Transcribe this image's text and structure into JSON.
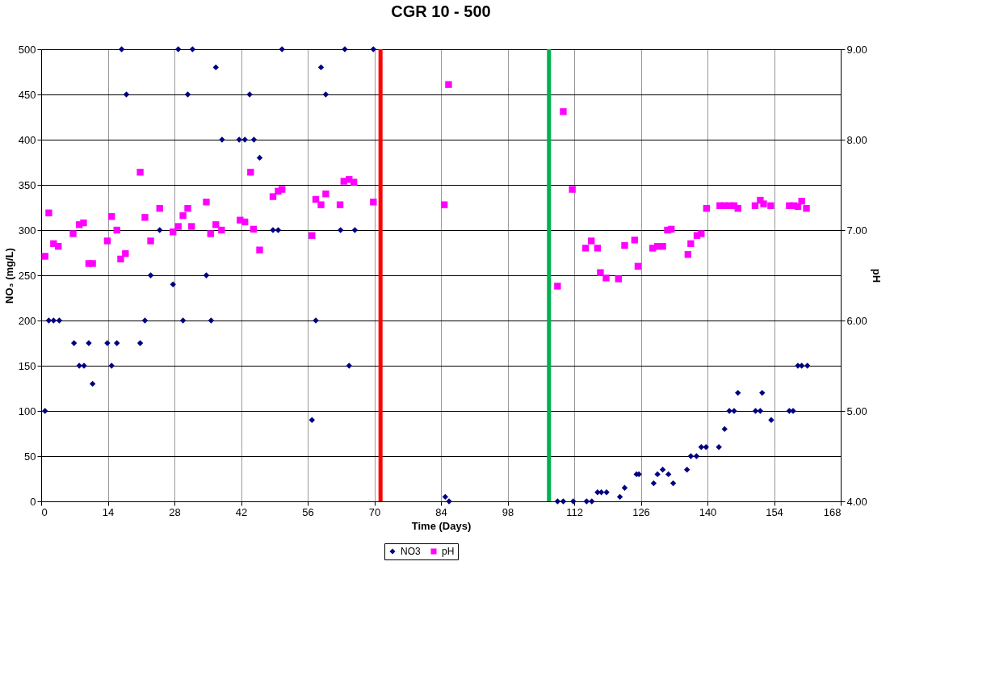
{
  "chart_data": {
    "type": "scatter",
    "title": "CGR 10 - 500",
    "xlabel": "Time (Days)",
    "ylabel": "NO₃ (mg/L)",
    "y2label": "pH",
    "xlim": [
      0,
      168
    ],
    "xticks": [
      0,
      14,
      28,
      42,
      56,
      70,
      84,
      98,
      112,
      126,
      140,
      154,
      168
    ],
    "ylim": [
      0,
      500
    ],
    "yticks": [
      0,
      50,
      100,
      150,
      200,
      250,
      300,
      350,
      400,
      450,
      500
    ],
    "y2lim": [
      4,
      9
    ],
    "y2ticks": [
      {
        "value": 4,
        "label": "4.00"
      },
      {
        "value": 5,
        "label": "5.00"
      },
      {
        "value": 6,
        "label": "6.00"
      },
      {
        "value": 7,
        "label": "7.00"
      },
      {
        "value": 8,
        "label": "8.00"
      },
      {
        "value": 9,
        "label": "9.00"
      }
    ],
    "grid": true,
    "legend": "bottom",
    "ref_lines": [
      {
        "axis": "x",
        "value": 71.3,
        "color": "#ff0000"
      },
      {
        "axis": "x",
        "value": 106.7,
        "color": "#00b050"
      }
    ],
    "series": [
      {
        "name": "NO3",
        "color": "#000080",
        "marker": "diamond",
        "x": [
          0.8,
          1.6,
          2.6,
          3.8,
          6.9,
          8.0,
          9.0,
          10,
          10.8,
          13.9,
          14.8,
          15.9,
          16.9,
          17.9,
          20.8,
          21.8,
          23,
          24.9,
          27.7,
          28.8,
          29.8,
          30.8,
          31.8,
          34.7,
          35.7,
          36.7,
          38,
          41.6,
          42.8,
          43.8,
          44.7,
          45.9,
          48.7,
          49.8,
          50.6,
          56.9,
          57.7,
          58.8,
          59.8,
          62.9,
          63.8,
          64.7,
          65.9,
          69.8,
          84.9,
          85.7,
          108.5,
          109.7,
          111.8,
          114.6,
          115.7,
          116.9,
          117.7,
          118.8,
          121.6,
          122.6,
          125.1,
          125.6,
          128.7,
          129.5,
          130.6,
          131.8,
          132.8,
          135.7,
          136.5,
          137.7,
          138.7,
          139.7,
          142.4,
          143.6,
          144.6,
          145.6,
          146.4,
          150.1,
          151.1,
          151.5,
          153.4,
          157.2,
          158,
          159,
          159.8,
          161
        ],
        "values": [
          100,
          200,
          200,
          200,
          175,
          150,
          150,
          175,
          130,
          175,
          150,
          175,
          500,
          450,
          175,
          200,
          250,
          300,
          240,
          500,
          200,
          450,
          500,
          250,
          200,
          480,
          400,
          400,
          400,
          450,
          400,
          380,
          300,
          300,
          500,
          90,
          200,
          480,
          450,
          300,
          500,
          150,
          300,
          500,
          5,
          0,
          0,
          0,
          0,
          0,
          0,
          10,
          10,
          10,
          5,
          15,
          30,
          30,
          20,
          30,
          35,
          30,
          20,
          35,
          50,
          50,
          60,
          60,
          60,
          80,
          100,
          100,
          120,
          100,
          100,
          120,
          90,
          100,
          100,
          150,
          150,
          150
        ]
      },
      {
        "name": "pH",
        "color": "#ff00ff",
        "marker": "square",
        "axis": "y2",
        "x": [
          0.8,
          1.6,
          2.6,
          3.6,
          6.7,
          8,
          8.9,
          10,
          10.8,
          13.9,
          14.8,
          15.9,
          16.7,
          17.7,
          20.8,
          21.8,
          23,
          24.9,
          27.7,
          28.8,
          29.8,
          30.8,
          31.6,
          34.7,
          35.6,
          36.7,
          37.9,
          41.8,
          42.8,
          44,
          44.6,
          45.9,
          48.7,
          49.8,
          50.6,
          56.9,
          57.7,
          58.8,
          59.8,
          62.8,
          63.6,
          64.7,
          65.7,
          69.8,
          84.7,
          85.6,
          108.5,
          109.7,
          111.6,
          114.4,
          115.6,
          116.9,
          117.5,
          118.7,
          121.3,
          122.6,
          124.7,
          125.4,
          128.5,
          129.5,
          130.6,
          131.6,
          132.4,
          135.9,
          136.5,
          137.8,
          138.7,
          139.8,
          142.6,
          143.6,
          144.6,
          145.6,
          146.4,
          150,
          151.1,
          151.8,
          153.3,
          157.2,
          158.2,
          159,
          159.8,
          160.8
        ],
        "values": [
          6.71,
          7.19,
          6.85,
          6.82,
          6.96,
          7.06,
          7.08,
          6.63,
          6.63,
          6.88,
          7.15,
          7.0,
          6.68,
          6.74,
          7.64,
          7.14,
          6.88,
          7.24,
          6.98,
          7.04,
          7.16,
          7.24,
          7.04,
          7.31,
          6.96,
          7.06,
          7.0,
          7.11,
          7.09,
          7.64,
          7.01,
          6.78,
          7.37,
          7.43,
          7.45,
          6.94,
          7.34,
          7.28,
          7.4,
          7.28,
          7.54,
          7.56,
          7.53,
          7.31,
          7.28,
          8.61,
          6.38,
          8.31,
          7.45,
          6.8,
          6.88,
          6.8,
          6.53,
          6.47,
          6.46,
          6.83,
          6.89,
          6.6,
          6.8,
          6.82,
          6.82,
          7.0,
          7.01,
          6.73,
          6.85,
          6.94,
          6.96,
          7.24,
          7.27,
          7.27,
          7.27,
          7.27,
          7.24,
          7.27,
          7.33,
          7.29,
          7.27,
          7.27,
          7.27,
          7.26,
          7.32,
          7.24
        ]
      }
    ]
  }
}
